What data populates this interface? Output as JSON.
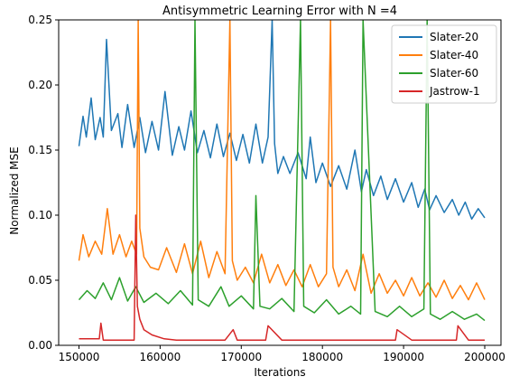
{
  "chart_data": {
    "type": "line",
    "title": "Antisymmetric Learning Error with N =4",
    "xlabel": "Iterations",
    "ylabel": "Normalized MSE",
    "xlim": [
      147500,
      202000
    ],
    "ylim": [
      0,
      0.25
    ],
    "xticks": [
      150000,
      160000,
      170000,
      180000,
      190000,
      200000
    ],
    "xtick_labels": [
      "150000",
      "160000",
      "170000",
      "180000",
      "190000",
      "200000"
    ],
    "yticks": [
      0,
      0.05,
      0.1,
      0.15,
      0.2,
      0.25
    ],
    "ytick_labels": [
      "0.00",
      "0.05",
      "0.10",
      "0.15",
      "0.20",
      "0.25"
    ],
    "grid": false,
    "legend_position": "top-right",
    "series": [
      {
        "name": "Slater-20",
        "color": "#1f77b4",
        "x": [
          150000,
          150500,
          150900,
          151500,
          152000,
          152600,
          153000,
          153400,
          154000,
          154800,
          155300,
          156000,
          156800,
          157500,
          158200,
          159000,
          159800,
          160600,
          161500,
          162300,
          163000,
          163800,
          164600,
          165400,
          166200,
          167000,
          167800,
          168600,
          169400,
          170200,
          171000,
          171800,
          172600,
          173300,
          173800,
          174100,
          174500,
          175200,
          176000,
          177000,
          178000,
          178500,
          179200,
          180000,
          181000,
          182000,
          183000,
          184000,
          184800,
          185400,
          186300,
          187200,
          188000,
          189000,
          190000,
          191000,
          191800,
          192600,
          193200,
          194000,
          195000,
          196000,
          196800,
          197600,
          198400,
          199200,
          200000
        ],
        "y": [
          0.153,
          0.176,
          0.16,
          0.19,
          0.158,
          0.175,
          0.16,
          0.235,
          0.165,
          0.178,
          0.152,
          0.185,
          0.152,
          0.175,
          0.148,
          0.172,
          0.15,
          0.195,
          0.146,
          0.168,
          0.15,
          0.18,
          0.148,
          0.165,
          0.144,
          0.17,
          0.145,
          0.163,
          0.142,
          0.162,
          0.14,
          0.17,
          0.14,
          0.16,
          0.25,
          0.155,
          0.132,
          0.145,
          0.132,
          0.148,
          0.128,
          0.16,
          0.125,
          0.14,
          0.122,
          0.138,
          0.12,
          0.15,
          0.118,
          0.135,
          0.115,
          0.13,
          0.112,
          0.128,
          0.11,
          0.125,
          0.106,
          0.12,
          0.104,
          0.115,
          0.102,
          0.112,
          0.1,
          0.11,
          0.097,
          0.105,
          0.098
        ]
      },
      {
        "name": "Slater-40",
        "color": "#ff7f0e",
        "x": [
          150000,
          150500,
          151200,
          152000,
          152800,
          153500,
          154200,
          155000,
          155800,
          156500,
          157100,
          157300,
          157500,
          158000,
          158800,
          159800,
          160800,
          162000,
          163000,
          164000,
          165000,
          166000,
          167000,
          168000,
          168600,
          168900,
          169500,
          170500,
          171500,
          172500,
          173500,
          174500,
          175500,
          176500,
          177500,
          178500,
          179500,
          180500,
          181000,
          181300,
          182000,
          183000,
          184000,
          185000,
          186000,
          187000,
          188000,
          189000,
          190000,
          191000,
          192000,
          193000,
          194000,
          195000,
          196000,
          197000,
          198000,
          199000,
          200000
        ],
        "y": [
          0.065,
          0.085,
          0.068,
          0.08,
          0.07,
          0.105,
          0.07,
          0.085,
          0.068,
          0.08,
          0.07,
          0.25,
          0.09,
          0.068,
          0.06,
          0.058,
          0.075,
          0.056,
          0.078,
          0.055,
          0.08,
          0.052,
          0.072,
          0.055,
          0.25,
          0.065,
          0.05,
          0.06,
          0.048,
          0.07,
          0.048,
          0.062,
          0.046,
          0.058,
          0.045,
          0.062,
          0.045,
          0.055,
          0.25,
          0.06,
          0.045,
          0.058,
          0.042,
          0.07,
          0.04,
          0.055,
          0.04,
          0.05,
          0.038,
          0.052,
          0.038,
          0.048,
          0.037,
          0.05,
          0.036,
          0.046,
          0.035,
          0.048,
          0.035
        ]
      },
      {
        "name": "Slater-60",
        "color": "#2ca02c",
        "x": [
          150000,
          151000,
          152000,
          153000,
          154000,
          155000,
          156000,
          157000,
          158000,
          159500,
          161000,
          162500,
          164000,
          164300,
          164700,
          166000,
          167500,
          168500,
          170000,
          171500,
          171800,
          172300,
          173500,
          175000,
          176500,
          177300,
          177700,
          179000,
          180500,
          182000,
          183500,
          184700,
          185000,
          186500,
          188000,
          189500,
          191000,
          192500,
          192900,
          193300,
          194500,
          196000,
          197500,
          199000,
          200000
        ],
        "y": [
          0.035,
          0.042,
          0.036,
          0.048,
          0.035,
          0.052,
          0.034,
          0.045,
          0.033,
          0.04,
          0.032,
          0.042,
          0.031,
          0.25,
          0.035,
          0.03,
          0.045,
          0.03,
          0.038,
          0.028,
          0.115,
          0.03,
          0.028,
          0.036,
          0.026,
          0.25,
          0.03,
          0.025,
          0.035,
          0.024,
          0.03,
          0.024,
          0.25,
          0.026,
          0.022,
          0.03,
          0.022,
          0.028,
          0.25,
          0.024,
          0.02,
          0.026,
          0.02,
          0.024,
          0.019
        ]
      },
      {
        "name": "Jastrow-1",
        "color": "#d62728",
        "x": [
          150000,
          151500,
          152500,
          152700,
          153000,
          155000,
          156800,
          157000,
          157200,
          157500,
          158000,
          159000,
          160500,
          162000,
          164000,
          166000,
          168000,
          169000,
          169500,
          171000,
          173000,
          173300,
          175000,
          177000,
          179000,
          181000,
          183000,
          185000,
          187000,
          189000,
          189200,
          191000,
          193000,
          195000,
          196500,
          196700,
          198000,
          200000
        ],
        "y": [
          0.005,
          0.005,
          0.005,
          0.017,
          0.004,
          0.004,
          0.004,
          0.1,
          0.03,
          0.02,
          0.012,
          0.008,
          0.005,
          0.004,
          0.004,
          0.004,
          0.004,
          0.012,
          0.004,
          0.004,
          0.004,
          0.015,
          0.004,
          0.004,
          0.004,
          0.004,
          0.004,
          0.004,
          0.004,
          0.004,
          0.012,
          0.004,
          0.004,
          0.004,
          0.004,
          0.015,
          0.004,
          0.004
        ]
      }
    ]
  }
}
